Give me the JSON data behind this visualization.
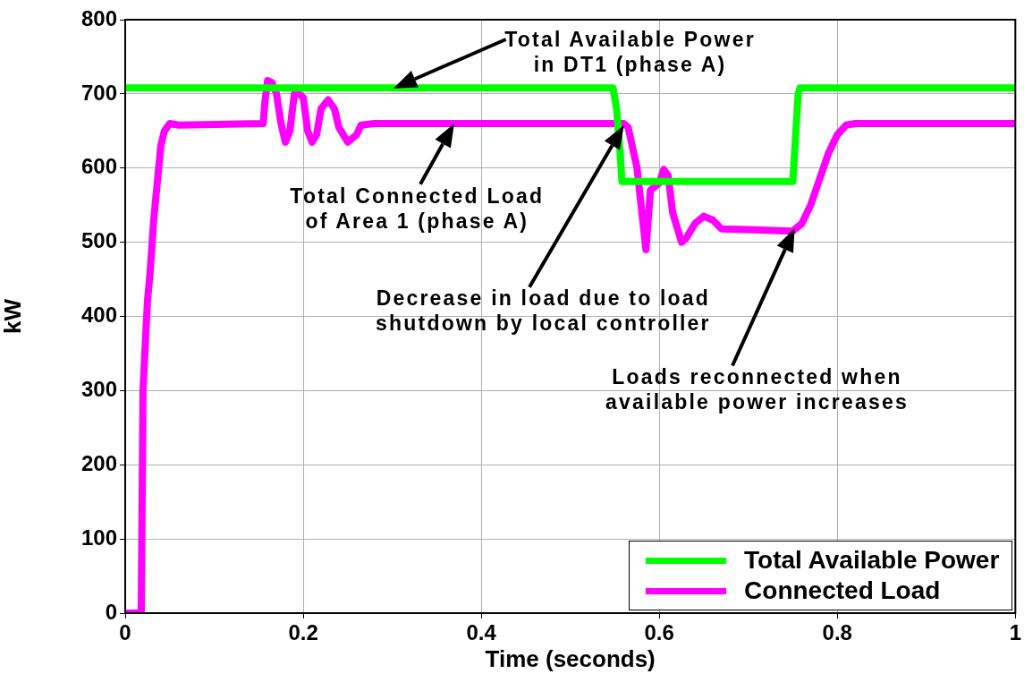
{
  "chart_data": {
    "type": "line",
    "xlabel": "Time (seconds)",
    "ylabel": "kW",
    "xlim": [
      0,
      1
    ],
    "xticks": [
      0,
      0.2,
      0.4,
      0.6,
      0.8,
      1
    ],
    "ylim": [
      0,
      800
    ],
    "yticks": [
      0,
      100,
      200,
      300,
      400,
      500,
      600,
      700,
      800
    ],
    "grid": true,
    "legend": "bottom right",
    "marker": "none",
    "line_style": "solid",
    "series": [
      {
        "name": "Total Available Power",
        "color": "#00ff00",
        "x": [
          0,
          0.548,
          0.552,
          0.556,
          0.558,
          0.75,
          0.753,
          0.756,
          0.758,
          1
        ],
        "values": [
          708,
          708,
          680,
          620,
          582,
          582,
          640,
          700,
          708,
          708
        ]
      },
      {
        "name": "Connected Load",
        "color": "#ff00ff",
        "x": [
          0,
          0.018,
          0.02,
          0.022,
          0.025,
          0.028,
          0.032,
          0.036,
          0.04,
          0.044,
          0.05,
          0.06,
          0.155,
          0.157,
          0.16,
          0.165,
          0.17,
          0.175,
          0.18,
          0.185,
          0.19,
          0.195,
          0.2,
          0.205,
          0.21,
          0.215,
          0.22,
          0.228,
          0.235,
          0.24,
          0.25,
          0.26,
          0.265,
          0.28,
          0.56,
          0.565,
          0.575,
          0.585,
          0.59,
          0.6,
          0.605,
          0.61,
          0.615,
          0.625,
          0.63,
          0.64,
          0.65,
          0.66,
          0.67,
          0.7,
          0.75,
          0.76,
          0.77,
          0.78,
          0.79,
          0.8,
          0.81,
          0.82,
          1
        ],
        "values": [
          0,
          0,
          300,
          350,
          420,
          460,
          530,
          580,
          630,
          650,
          660,
          658,
          660,
          690,
          718,
          715,
          700,
          660,
          635,
          650,
          700,
          700,
          695,
          650,
          635,
          645,
          680,
          692,
          680,
          655,
          635,
          645,
          658,
          660,
          660,
          655,
          600,
          490,
          570,
          580,
          598,
          590,
          540,
          500,
          505,
          525,
          535,
          530,
          518,
          517,
          515,
          525,
          550,
          585,
          620,
          645,
          658,
          660,
          660
        ]
      }
    ],
    "annotations": [
      "Total Available Power\nin DT1 (phase A)",
      {
        "text": "Total Connected Load\nof Area 1 (phase A)",
        "x": 0.37,
        "y": 660
      },
      "Decrease in load due to load\nshutdown by local controller",
      "Loads reconnected when\navailable power increases"
    ]
  }
}
